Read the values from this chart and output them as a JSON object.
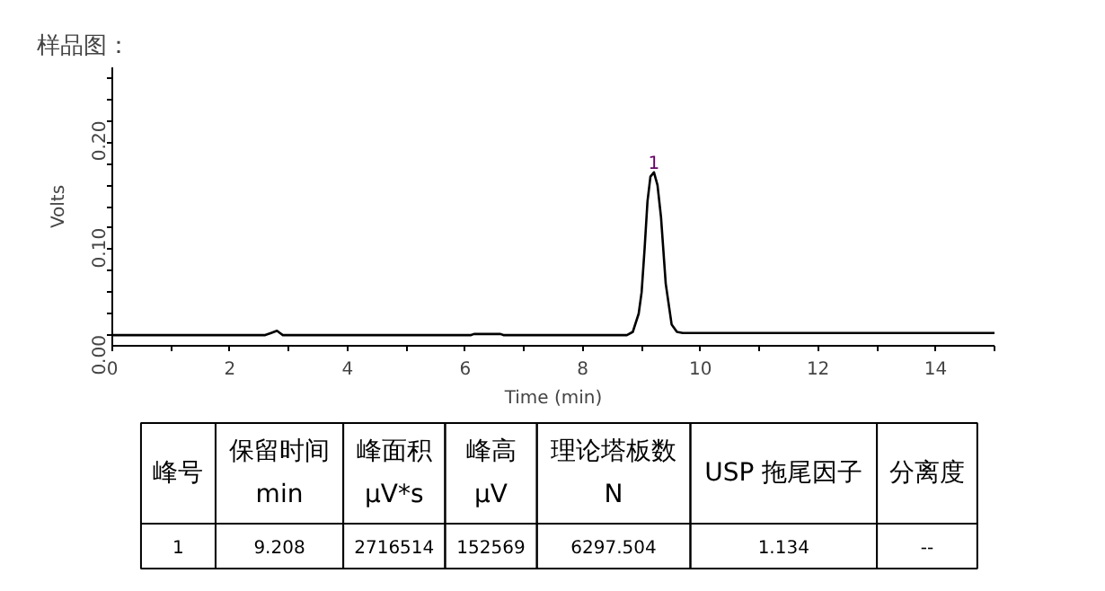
{
  "chart_data": {
    "type": "line",
    "title": "样品图：",
    "xlabel": "Time (min)",
    "ylabel": "Volts",
    "x": [
      0,
      2.6,
      2.7,
      2.8,
      2.85,
      2.9,
      6.1,
      6.15,
      6.6,
      6.65,
      8.75,
      8.85,
      8.95,
      9.0,
      9.05,
      9.1,
      9.15,
      9.21,
      9.27,
      9.33,
      9.41,
      9.51,
      9.6,
      9.7,
      15
    ],
    "series": [
      {
        "color": "#000000",
        "values": [
          0,
          0,
          0.002,
          0.004,
          0.002,
          0,
          0,
          0.001,
          0.001,
          0,
          0,
          0.003,
          0.02,
          0.04,
          0.08,
          0.125,
          0.148,
          0.152,
          0.14,
          0.11,
          0.048,
          0.01,
          0.003,
          0.002,
          0.002
        ]
      }
    ],
    "xlim": [
      0,
      15
    ],
    "ylim": [
      -0.01,
      0.25
    ],
    "xticks": [
      0,
      {
        "value": 1,
        "label": null
      },
      2,
      {
        "value": 3,
        "label": null
      },
      4,
      {
        "value": 5,
        "label": null
      },
      6,
      {
        "value": 7,
        "label": null
      },
      8,
      {
        "value": 9,
        "label": null
      },
      10,
      {
        "value": 11,
        "label": null
      },
      12,
      {
        "value": 13,
        "label": null
      },
      14,
      {
        "value": 15,
        "label": null
      }
    ],
    "yticks": [
      {
        "value": 0,
        "label": "0.00"
      },
      {
        "value": 0.02,
        "label": null
      },
      {
        "value": 0.04,
        "label": null
      },
      {
        "value": 0.06,
        "label": null
      },
      {
        "value": 0.08,
        "label": null
      },
      {
        "value": 0.1,
        "label": "0.10"
      },
      {
        "value": 0.12,
        "label": null
      },
      {
        "value": 0.14,
        "label": null
      },
      {
        "value": 0.16,
        "label": null
      },
      {
        "value": 0.18,
        "label": null
      },
      {
        "value": 0.2,
        "label": "0.20"
      },
      {
        "value": 0.22,
        "label": null
      },
      {
        "value": 0.24,
        "label": null
      }
    ],
    "grid": false,
    "annotations": [
      {
        "text": "1",
        "x": 9.21,
        "y": 0.152
      },
      "峰号",
      "保留时间\nmin",
      "峰面积\nμV*s",
      "峰高\nμV",
      "理论塔板数\nN",
      "USP 拖尾因子",
      "分离度",
      "1",
      "9.208",
      "2716514",
      "152569",
      "6297.504",
      "1.134",
      "--"
    ]
  }
}
